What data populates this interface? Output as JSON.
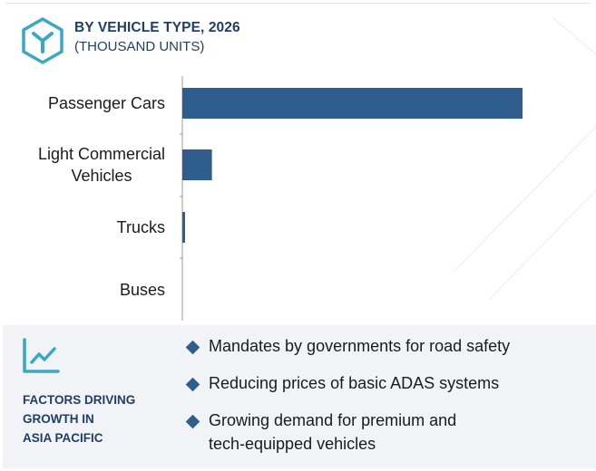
{
  "header": {
    "title": "BY VEHICLE TYPE, 2026",
    "subtitle": "(THOUSAND UNITS)",
    "icon": "segment-hexagon-icon"
  },
  "colors": {
    "bar": "#2e5d8e",
    "title": "#1f3f67",
    "accent": "#3aa7c4",
    "panel": "#f1f3f7"
  },
  "chart_data": {
    "type": "bar",
    "orientation": "horizontal",
    "title": "BY VEHICLE TYPE, 2026",
    "subtitle": "(THOUSAND UNITS)",
    "categories": [
      "Passenger Cars",
      "Light Commercial Vehicles",
      "Trucks",
      "Buses"
    ],
    "category_lines": [
      [
        "Passenger Cars"
      ],
      [
        "Light Commercial",
        "Vehicles"
      ],
      [
        "Trucks"
      ],
      [
        "Buses"
      ]
    ],
    "values": [
      100,
      8.7,
      0.8,
      0
    ],
    "value_scale": "relative (no value axis shown)",
    "grid": false,
    "legend": "none"
  },
  "factors": {
    "title_lines": [
      "FACTORS DRIVING",
      "GROWTH IN",
      "ASIA PACIFIC"
    ],
    "icon": "trend-chart-icon",
    "items": [
      {
        "lines": [
          "Mandates by governments for road safety"
        ]
      },
      {
        "lines": [
          "Reducing prices of basic ADAS systems"
        ]
      },
      {
        "lines": [
          "Growing demand for premium and",
          "tech-equipped vehicles"
        ]
      }
    ]
  }
}
